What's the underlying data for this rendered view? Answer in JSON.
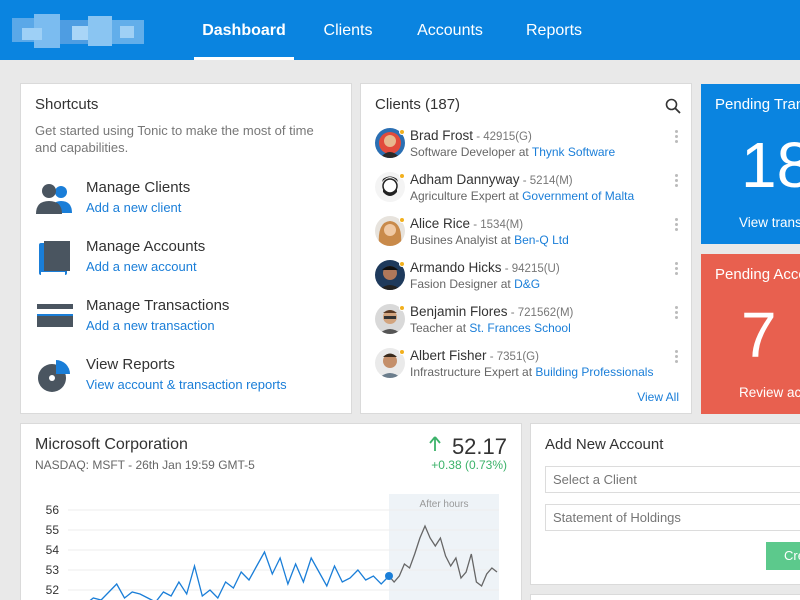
{
  "header": {
    "tabs": [
      {
        "label": "Dashboard",
        "active": true
      },
      {
        "label": "Clients",
        "active": false
      },
      {
        "label": "Accounts",
        "active": false
      },
      {
        "label": "Reports",
        "active": false
      }
    ]
  },
  "shortcuts": {
    "title": "Shortcuts",
    "intro": "Get started using Tonic to make the most of time and capabilities.",
    "items": [
      {
        "icon": "users-icon",
        "title": "Manage Clients",
        "link": "Add a new client"
      },
      {
        "icon": "book-icon",
        "title": "Manage Accounts",
        "link": "Add a new account"
      },
      {
        "icon": "credit-card-icon",
        "title": "Manage Transactions",
        "link": "Add a new transaction"
      },
      {
        "icon": "pie-chart-icon",
        "title": "View Reports",
        "link": "View account & transaction reports"
      }
    ]
  },
  "clients": {
    "title": "Clients (187)",
    "view_all": "View All",
    "items": [
      {
        "name": "Brad Frost",
        "id": " - 42915(G)",
        "role": "Software Developer at ",
        "org": "Thynk Software"
      },
      {
        "name": "Adham Dannyway",
        "id": " - 5214(M)",
        "role": "Agriculture Expert at ",
        "org": "Government of Malta"
      },
      {
        "name": "Alice Rice",
        "id": " - 1534(M)",
        "role": "Busines Analyist at ",
        "org": "Ben-Q Ltd"
      },
      {
        "name": "Armando Hicks",
        "id": " - 94215(U)",
        "role": "Fasion Designer at ",
        "org": "D&G"
      },
      {
        "name": "Benjamin Flores",
        "id": " - 721562(M)",
        "role": "Teacher at ",
        "org": "St. Frances School"
      },
      {
        "name": "Albert Fisher",
        "id": " - 7351(G)",
        "role": "Infrastructure Expert at ",
        "org": "Building Professionals"
      }
    ]
  },
  "tiles": {
    "pending_transactions": {
      "title": "Pending Transactions",
      "count": "18",
      "link": "View transactions",
      "color": "#0a84e0"
    },
    "pending_accounts": {
      "title": "Pending Accounts",
      "count": "7",
      "link": "Review accounts",
      "color": "#e8604f"
    }
  },
  "stock": {
    "company": "Microsoft Corporation",
    "ticker_line": "NASDAQ: MSFT - 26th Jan 19:59 GMT-5",
    "price": "52.17",
    "change": "+0.38 (0.73%)",
    "after_hours_label": "After hours"
  },
  "chart_data": {
    "type": "line",
    "y_ticks": [
      "56",
      "55",
      "54",
      "53",
      "52"
    ],
    "ylim": [
      51.5,
      56.5
    ],
    "regular_hours": [
      51.2,
      51.4,
      51.3,
      51.6,
      51.5,
      51.9,
      52.3,
      51.6,
      51.9,
      51.8,
      51.6,
      51.4,
      51.9,
      51.7,
      52.4,
      51.8,
      53.2,
      51.7,
      52.0,
      51.6,
      52.4,
      52.1,
      52.9,
      52.5,
      53.2,
      53.9,
      52.8,
      53.6,
      52.3,
      53.3,
      52.4,
      53.6,
      52.9,
      52.2,
      53.2,
      52.4,
      52.6,
      53.0,
      52.5,
      52.7,
      52.3,
      52.7
    ],
    "after_hours": [
      52.7,
      52.4,
      52.7,
      53.3,
      53.1,
      53.8,
      54.6,
      55.2,
      54.6,
      54.2,
      54.6,
      53.7,
      53.2,
      53.6,
      52.6,
      52.9,
      53.8,
      52.4,
      52.2,
      52.8,
      53.1,
      52.9
    ],
    "accent": "#1a7ed8",
    "after_hours_color": "#666666"
  },
  "add_account": {
    "title": "Add New Account",
    "client_placeholder": "Select a Client",
    "holdings_placeholder": "Statement of Holdings",
    "create_label": "Create"
  }
}
